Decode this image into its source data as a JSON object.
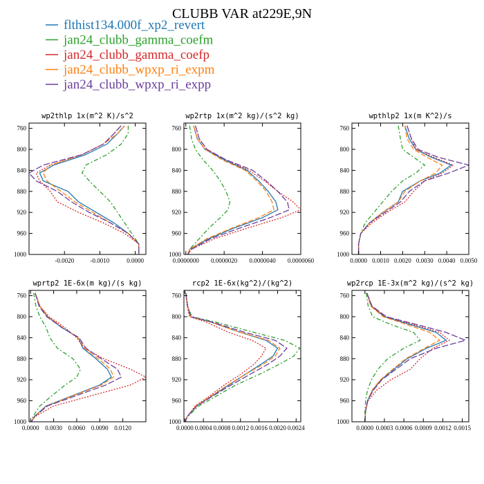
{
  "figure_title": "CLUBB VAR at229E,9N",
  "series_styles": [
    {
      "name": "flthist134.000f_xp2_revert",
      "color": "#1f77b4",
      "dash": ""
    },
    {
      "name": "jan24_clubb_gamma_coefm",
      "color": "#2ca02c",
      "dash": "6,3,2,3"
    },
    {
      "name": "jan24_clubb_gamma_coefp",
      "color": "#d62728",
      "dash": "2,2"
    },
    {
      "name": "jan24_clubb_wpxp_ri_expm",
      "color": "#ff7f0e",
      "dash": "7,3"
    },
    {
      "name": "jan24_clubb_wpxp_ri_expp",
      "color": "#6a3d9a",
      "dash": "9,3"
    }
  ],
  "chart_data": [
    {
      "type": "line",
      "title": "wp2thlp  1x(m^2 K)/s^2",
      "xlim": [
        -0.003,
        0.0003
      ],
      "xticks": [
        -0.002,
        -0.001,
        0.0
      ],
      "xtick_labels": [
        "-0.0020",
        "-0.0010",
        "0.0000"
      ],
      "ylim": [
        1000,
        750
      ],
      "yticks": [
        760,
        800,
        840,
        880,
        920,
        960,
        1000
      ],
      "y": [
        755,
        770,
        790,
        810,
        830,
        845,
        860,
        880,
        900,
        920,
        940,
        960,
        980,
        995,
        1000
      ],
      "series": [
        {
          "name": "flthist134.000f_xp2_revert",
          "values": [
            -0.0003,
            -0.0005,
            -0.0008,
            -0.0014,
            -0.0023,
            -0.0027,
            -0.0026,
            -0.0019,
            -0.0016,
            -0.0011,
            -0.0006,
            -0.0002,
            0.0001,
            0.0001,
            0.0001
          ]
        },
        {
          "name": "jan24_clubb_gamma_coefm",
          "values": [
            -0.0002,
            -0.0002,
            -0.0004,
            -0.0008,
            -0.0014,
            -0.0015,
            -0.0013,
            -0.001,
            -0.0007,
            -0.0005,
            -0.0003,
            -0.0001,
            0.0001,
            0.0001,
            0.0001
          ]
        },
        {
          "name": "jan24_clubb_gamma_coefp",
          "values": [
            -0.0004,
            -0.0006,
            -0.0009,
            -0.0015,
            -0.0024,
            -0.0028,
            -0.0027,
            -0.0024,
            -0.0022,
            -0.0016,
            -0.0009,
            -0.0003,
            0.0001,
            0.0001,
            0.0001
          ]
        },
        {
          "name": "jan24_clubb_wpxp_ri_expm",
          "values": [
            -0.0003,
            -0.0005,
            -0.0009,
            -0.0015,
            -0.0024,
            -0.0026,
            -0.0025,
            -0.0021,
            -0.0017,
            -0.0012,
            -0.0007,
            -0.0002,
            0.0001,
            0.0001,
            0.0001
          ]
        },
        {
          "name": "jan24_clubb_wpxp_ri_expp",
          "values": [
            -0.0004,
            -0.0006,
            -0.0009,
            -0.0015,
            -0.0026,
            -0.003,
            -0.0028,
            -0.0022,
            -0.0018,
            -0.0013,
            -0.0007,
            -0.0002,
            0.0001,
            0.0001,
            0.0001
          ]
        }
      ]
    },
    {
      "type": "line",
      "title": "wp2rtp  1x(m^2 kg)/(s^2 kg)",
      "xlim": [
        -1e-07,
        6e-06
      ],
      "xticks": [
        0.0,
        2e-06,
        4e-06,
        6e-06
      ],
      "xtick_labels": [
        "0.0000000",
        "0.0000020",
        "0.0000040",
        "0.0000060"
      ],
      "ylim": [
        1000,
        750
      ],
      "yticks": [
        760,
        800,
        840,
        880,
        920,
        960,
        1000
      ],
      "y": [
        755,
        780,
        800,
        820,
        840,
        860,
        880,
        900,
        915,
        930,
        950,
        970,
        990,
        1000
      ],
      "series": [
        {
          "name": "flthist134.000f_xp2_revert",
          "values": [
            4e-07,
            6e-07,
            1e-06,
            2e-06,
            3.2e-06,
            3.8e-06,
            4.3e-06,
            4.7e-06,
            4.8e-06,
            4e-06,
            2.5e-06,
            1.2e-06,
            2e-07,
            1e-07
          ]
        },
        {
          "name": "jan24_clubb_gamma_coefm",
          "values": [
            2e-07,
            3e-07,
            5e-07,
            9e-07,
            1.4e-06,
            1.8e-06,
            2.1e-06,
            2.3e-06,
            2.2e-06,
            1.8e-06,
            1.2e-06,
            7e-07,
            2e-07,
            1e-07
          ]
        },
        {
          "name": "jan24_clubb_gamma_coefp",
          "values": [
            5e-07,
            7e-07,
            1.1e-06,
            2.1e-06,
            3.3e-06,
            4.1e-06,
            4.8e-06,
            5.6e-06,
            6e-06,
            5e-06,
            3.2e-06,
            1.5e-06,
            3e-07,
            1e-07
          ]
        },
        {
          "name": "jan24_clubb_wpxp_ri_expm",
          "values": [
            4e-07,
            6e-07,
            1e-06,
            1.9e-06,
            3.1e-06,
            3.7e-06,
            4.2e-06,
            4.5e-06,
            4.6e-06,
            3.8e-06,
            2.4e-06,
            1.1e-06,
            2e-07,
            1e-07
          ]
        },
        {
          "name": "jan24_clubb_wpxp_ri_expp",
          "values": [
            5e-07,
            7e-07,
            1.1e-06,
            2.1e-06,
            3.5e-06,
            4.2e-06,
            4.8e-06,
            5.3e-06,
            5.4e-06,
            4.4e-06,
            2.8e-06,
            1.3e-06,
            3e-07,
            1e-07
          ]
        }
      ]
    },
    {
      "type": "line",
      "title": "wpthlp2  1x(m K^2)/s",
      "xlim": [
        -0.0003,
        0.005
      ],
      "xticks": [
        0.0,
        0.001,
        0.002,
        0.003,
        0.004,
        0.005
      ],
      "xtick_labels": [
        "0.0000",
        "0.0010",
        "0.0020",
        "0.0030",
        "0.0040",
        "0.0050"
      ],
      "ylim": [
        1000,
        750
      ],
      "yticks": [
        760,
        800,
        840,
        880,
        920,
        960,
        1000
      ],
      "y": [
        755,
        780,
        800,
        815,
        830,
        845,
        860,
        880,
        900,
        920,
        940,
        960,
        980,
        1000
      ],
      "series": [
        {
          "name": "flthist134.000f_xp2_revert",
          "values": [
            0.0021,
            0.0023,
            0.0026,
            0.0033,
            0.0042,
            0.0037,
            0.0028,
            0.002,
            0.0018,
            0.0011,
            0.0005,
            0.0001,
            0.0,
            0.0
          ]
        },
        {
          "name": "jan24_clubb_gamma_coefm",
          "values": [
            0.0018,
            0.0019,
            0.002,
            0.0025,
            0.003,
            0.0026,
            0.002,
            0.0015,
            0.0011,
            0.0007,
            0.0003,
            0.0001,
            0.0,
            0.0
          ]
        },
        {
          "name": "jan24_clubb_gamma_coefp",
          "values": [
            0.0022,
            0.0024,
            0.0026,
            0.0034,
            0.0043,
            0.0038,
            0.003,
            0.0025,
            0.0021,
            0.0013,
            0.0006,
            0.0001,
            0.0,
            0.0
          ]
        },
        {
          "name": "jan24_clubb_wpxp_ri_expm",
          "values": [
            0.0021,
            0.0022,
            0.0025,
            0.0031,
            0.0038,
            0.0035,
            0.0028,
            0.0021,
            0.0018,
            0.0011,
            0.0005,
            0.0001,
            0.0,
            0.0
          ]
        },
        {
          "name": "jan24_clubb_wpxp_ri_expp",
          "values": [
            0.0022,
            0.0024,
            0.0027,
            0.0036,
            0.005,
            0.0041,
            0.003,
            0.0023,
            0.0019,
            0.0012,
            0.0005,
            0.0001,
            0.0,
            0.0
          ]
        }
      ]
    },
    {
      "type": "line",
      "title": "wprtp2  1E-6x(m kg)/(s kg)",
      "xlim": [
        -0.0002,
        0.015
      ],
      "xticks": [
        0.0,
        0.003,
        0.006,
        0.009,
        0.012
      ],
      "xtick_labels": [
        "0.0000",
        "0.0030",
        "0.0060",
        "0.0090",
        "0.0120"
      ],
      "ylim": [
        1000,
        750
      ],
      "yticks": [
        760,
        800,
        840,
        880,
        920,
        960,
        1000
      ],
      "y": [
        755,
        780,
        800,
        820,
        840,
        860,
        880,
        900,
        915,
        930,
        950,
        970,
        990,
        1000
      ],
      "series": [
        {
          "name": "flthist134.000f_xp2_revert",
          "values": [
            0.0006,
            0.0012,
            0.0022,
            0.004,
            0.0062,
            0.0068,
            0.0085,
            0.01,
            0.0105,
            0.009,
            0.0055,
            0.002,
            0.0005,
            0.0001
          ]
        },
        {
          "name": "jan24_clubb_gamma_coefm",
          "values": [
            0.0004,
            0.0007,
            0.0012,
            0.002,
            0.0025,
            0.0035,
            0.0055,
            0.0065,
            0.006,
            0.0045,
            0.0028,
            0.0012,
            0.0003,
            0.0001
          ]
        },
        {
          "name": "jan24_clubb_gamma_coefp",
          "values": [
            0.0006,
            0.0012,
            0.0024,
            0.0044,
            0.006,
            0.007,
            0.0095,
            0.013,
            0.015,
            0.013,
            0.008,
            0.003,
            0.0006,
            0.0001
          ]
        },
        {
          "name": "jan24_clubb_wpxp_ri_expm",
          "values": [
            0.0006,
            0.0012,
            0.0023,
            0.0041,
            0.0062,
            0.007,
            0.0088,
            0.0104,
            0.0108,
            0.0092,
            0.0056,
            0.0021,
            0.0005,
            0.0001
          ]
        },
        {
          "name": "jan24_clubb_wpxp_ri_expp",
          "values": [
            0.0006,
            0.0011,
            0.0021,
            0.004,
            0.0063,
            0.0072,
            0.0092,
            0.0113,
            0.0118,
            0.0098,
            0.006,
            0.0022,
            0.0005,
            0.0001
          ]
        }
      ]
    },
    {
      "type": "line",
      "title": "rcp2  1E-6x(kg^2)/(kg^2)",
      "xlim": [
        -2e-05,
        0.0025
      ],
      "xticks": [
        0.0,
        0.0004,
        0.0008,
        0.0012,
        0.0016,
        0.002,
        0.0024
      ],
      "xtick_labels": [
        "0.0000",
        "0.0004",
        "0.0008",
        "0.0012",
        "0.0016",
        "0.0020",
        "0.0024"
      ],
      "ylim": [
        1000,
        750
      ],
      "yticks": [
        760,
        800,
        840,
        880,
        920,
        960,
        1000
      ],
      "y": [
        755,
        780,
        800,
        810,
        830,
        845,
        860,
        875,
        890,
        910,
        930,
        950,
        970,
        990,
        1000
      ],
      "series": [
        {
          "name": "flthist134.000f_xp2_revert",
          "values": [
            2e-05,
            6e-05,
            0.00012,
            0.00055,
            0.0012,
            0.00175,
            0.002,
            0.0019,
            0.00165,
            0.0013,
            0.00095,
            0.0006,
            0.00025,
            5e-05,
            1e-05
          ]
        },
        {
          "name": "jan24_clubb_gamma_coefm",
          "values": [
            2e-05,
            6e-05,
            0.00015,
            0.00065,
            0.0015,
            0.00215,
            0.00248,
            0.00235,
            0.00205,
            0.0016,
            0.0011,
            0.0007,
            0.0003,
            6e-05,
            1e-05
          ]
        },
        {
          "name": "jan24_clubb_gamma_coefp",
          "values": [
            2e-05,
            5e-05,
            0.0001,
            0.00045,
            0.00095,
            0.00145,
            0.00175,
            0.00165,
            0.0015,
            0.0012,
            0.00085,
            0.00055,
            0.00022,
            5e-05,
            1e-05
          ]
        },
        {
          "name": "jan24_clubb_wpxp_ri_expm",
          "values": [
            2e-05,
            6e-05,
            0.00012,
            0.00055,
            0.0012,
            0.0018,
            0.00205,
            0.00195,
            0.0017,
            0.0013,
            0.00093,
            0.00058,
            0.00024,
            5e-05,
            1e-05
          ]
        },
        {
          "name": "jan24_clubb_wpxp_ri_expp",
          "values": [
            2e-05,
            6e-05,
            0.00013,
            0.00058,
            0.0013,
            0.00195,
            0.0022,
            0.00205,
            0.0018,
            0.0014,
            0.001,
            0.00062,
            0.00026,
            5e-05,
            1e-05
          ]
        }
      ]
    },
    {
      "type": "line",
      "title": "wp2rcp  1E-3x(m^2 kg)/(s^2 kg)",
      "xlim": [
        -0.0002,
        0.0016
      ],
      "xticks": [
        0.0,
        0.0003,
        0.0006,
        0.0009,
        0.0012,
        0.0015
      ],
      "xtick_labels": [
        "0.0000",
        "0.0003",
        "0.0006",
        "0.0009",
        "0.0012",
        "0.0015"
      ],
      "ylim": [
        1000,
        750
      ],
      "yticks": [
        760,
        800,
        840,
        880,
        920,
        960,
        1000
      ],
      "y": [
        755,
        780,
        800,
        815,
        830,
        845,
        860,
        880,
        900,
        920,
        940,
        960,
        980,
        1000
      ],
      "series": [
        {
          "name": "flthist134.000f_xp2_revert",
          "values": [
            3e-05,
            0.0001,
            0.0003,
            0.0007,
            0.0011,
            0.00125,
            0.00095,
            0.00065,
            0.00045,
            0.00025,
            0.00012,
            4e-05,
            1e-05,
            0.0
          ]
        },
        {
          "name": "jan24_clubb_gamma_coefm",
          "values": [
            2e-05,
            5e-05,
            0.00012,
            0.0004,
            0.00075,
            0.00085,
            0.0006,
            0.00035,
            0.0002,
            0.0001,
            4e-05,
            1e-05,
            0.0,
            0.0
          ]
        },
        {
          "name": "jan24_clubb_gamma_coefp",
          "values": [
            3e-05,
            0.0001,
            0.00032,
            0.00075,
            0.00115,
            0.0013,
            0.00105,
            0.00085,
            0.0007,
            0.0004,
            0.00018,
            5e-05,
            1e-05,
            0.0
          ]
        },
        {
          "name": "jan24_clubb_wpxp_ri_expm",
          "values": [
            3e-05,
            9e-05,
            0.00028,
            0.00065,
            0.001,
            0.00115,
            0.00092,
            0.00063,
            0.00043,
            0.00024,
            0.00011,
            4e-05,
            1e-05,
            0.0
          ]
        },
        {
          "name": "jan24_clubb_wpxp_ri_expp",
          "values": [
            3e-05,
            0.00011,
            0.00033,
            0.0008,
            0.00125,
            0.00155,
            0.0011,
            0.0007,
            0.00048,
            0.00026,
            0.00013,
            4e-05,
            1e-05,
            0.0
          ]
        }
      ]
    }
  ]
}
